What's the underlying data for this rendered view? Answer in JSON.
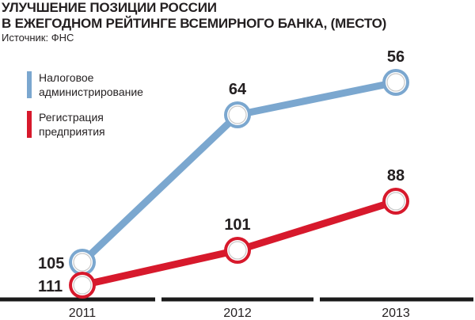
{
  "title_lines": [
    "УЛУЧШЕНИЕ ПОЗИЦИИ РОССИИ",
    "В ЕЖЕГОДНОМ РЕЙТИНГЕ ВСЕМИРНОГО БАНКА, (МЕСТО)"
  ],
  "source": "Источник: ФНС",
  "colors": {
    "blue": "#7ba7cf",
    "red": "#d7192c",
    "text": "#231f20",
    "axis": "#1a1a1a"
  },
  "chart_data": {
    "type": "line",
    "title": "УЛУЧШЕНИЕ ПОЗИЦИИ РОССИИ В ЕЖЕГОДНОМ РЕЙТИНГЕ ВСЕМИРНОГО БАНКА, (МЕСТО)",
    "categories": [
      "2011",
      "2012",
      "2013"
    ],
    "series": [
      {
        "name": "Налоговое администрирование",
        "name_lines": [
          "Налоговое",
          "администрирование"
        ],
        "values": [
          105,
          64,
          56
        ],
        "color": "#7ba7cf"
      },
      {
        "name": "Регистрация предприятия",
        "name_lines": [
          "Регистрация",
          "предприятия"
        ],
        "values": [
          111,
          101,
          88
        ],
        "color": "#d7192c"
      }
    ],
    "y_inverted": true,
    "legend": "top-left",
    "grid": false
  }
}
